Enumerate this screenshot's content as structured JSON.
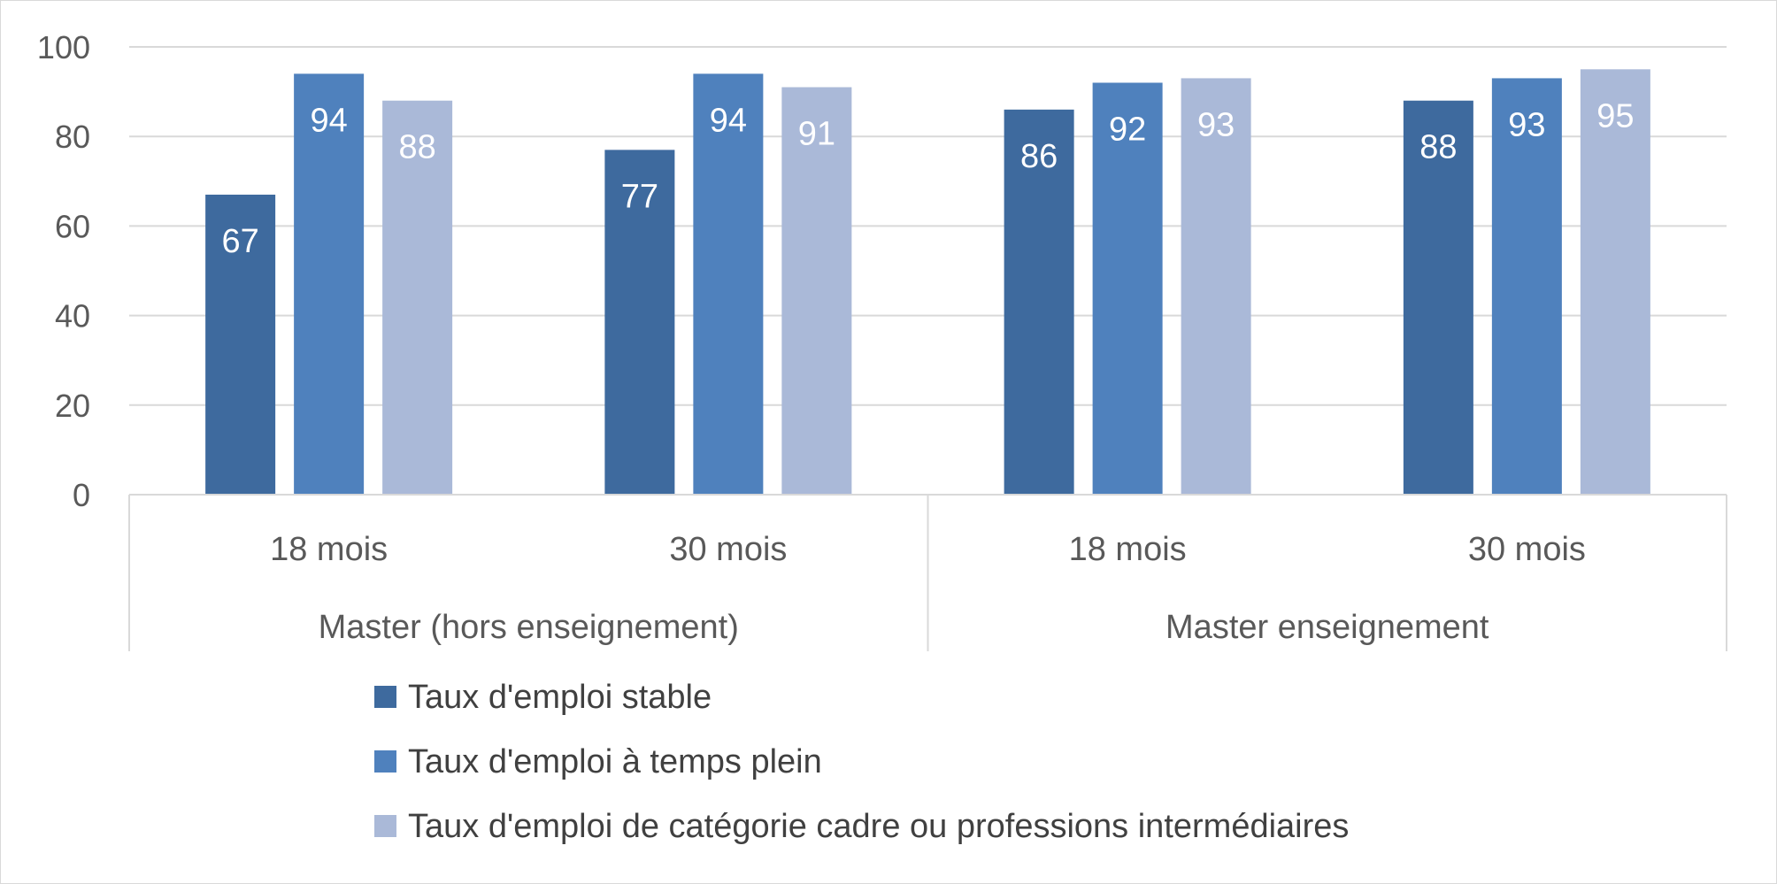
{
  "chart_data": {
    "type": "bar",
    "groups": [
      {
        "label": "Master (hors enseignement)",
        "categories": [
          "18 mois",
          "30 mois"
        ]
      },
      {
        "label": "Master enseignement",
        "categories": [
          "18 mois",
          "30 mois"
        ]
      }
    ],
    "categories": [
      "18 mois",
      "30 mois",
      "18 mois",
      "30 mois"
    ],
    "series": [
      {
        "name": "Taux d'emploi stable",
        "color": "#3e6a9e",
        "values": [
          67,
          77,
          86,
          88
        ]
      },
      {
        "name": "Taux d'emploi à temps plein",
        "color": "#4f81bd",
        "values": [
          94,
          94,
          92,
          93
        ]
      },
      {
        "name": "Taux d'emploi de catégorie cadre ou professions intermédiaires",
        "color": "#aab9d8",
        "values": [
          88,
          91,
          93,
          95
        ]
      }
    ],
    "ylim": [
      0,
      100
    ],
    "yticks": [
      0,
      20,
      40,
      60,
      80,
      100
    ],
    "grid": true,
    "legend": "bottom",
    "data_labels": true
  }
}
